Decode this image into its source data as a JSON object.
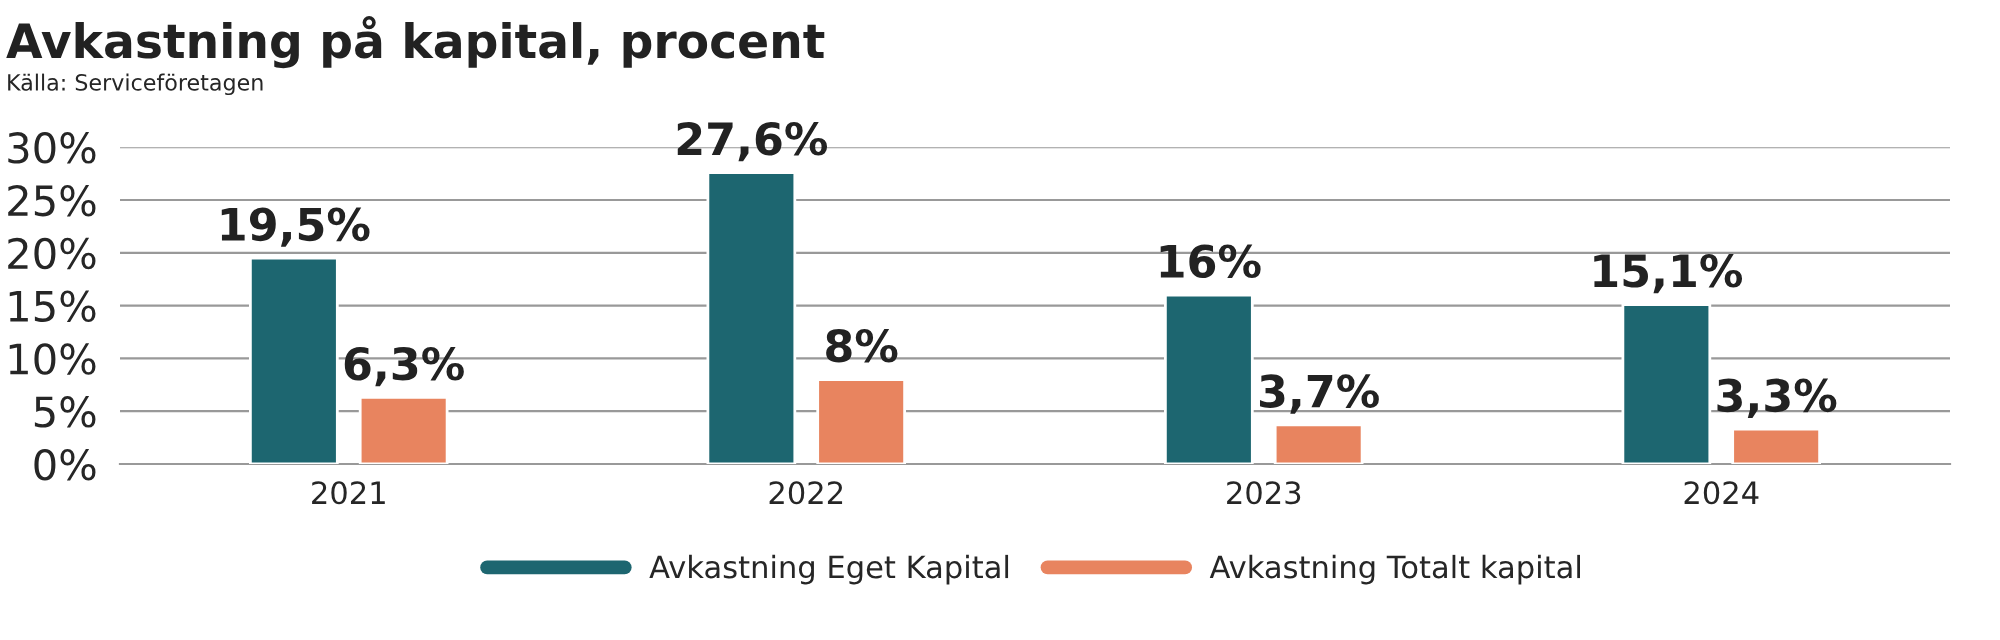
{
  "chart_data": {
    "type": "bar",
    "title": "Avkastning på kapital, procent",
    "annotations": [
      "Källa: Serviceföretagen"
    ],
    "categories": [
      "2021",
      "2022",
      "2023",
      "2024"
    ],
    "series": [
      {
        "name": "Avkastning Eget Kapital",
        "color": "#1d6670",
        "values": [
          19.5,
          27.6,
          16,
          15.1
        ],
        "value_labels": [
          "19,5%",
          "27,6%",
          "16%",
          "15,1%"
        ]
      },
      {
        "name": "Avkastning Totalt kapital",
        "color": "#e8845f",
        "values": [
          6.3,
          8,
          3.7,
          3.3
        ],
        "value_labels": [
          "6,3%",
          "8%",
          "3,7%",
          "3,3%"
        ]
      }
    ],
    "ylim": [
      0,
      30
    ],
    "yticks": [
      {
        "value": 0,
        "label": "0%"
      },
      {
        "value": 5,
        "label": "5%"
      },
      {
        "value": 10,
        "label": "10%"
      },
      {
        "value": 15,
        "label": "15%"
      },
      {
        "value": 20,
        "label": "20%"
      },
      {
        "value": 25,
        "label": "25%"
      },
      {
        "value": 30,
        "label": "30%"
      }
    ],
    "grid": "y",
    "legend": "bottom"
  }
}
